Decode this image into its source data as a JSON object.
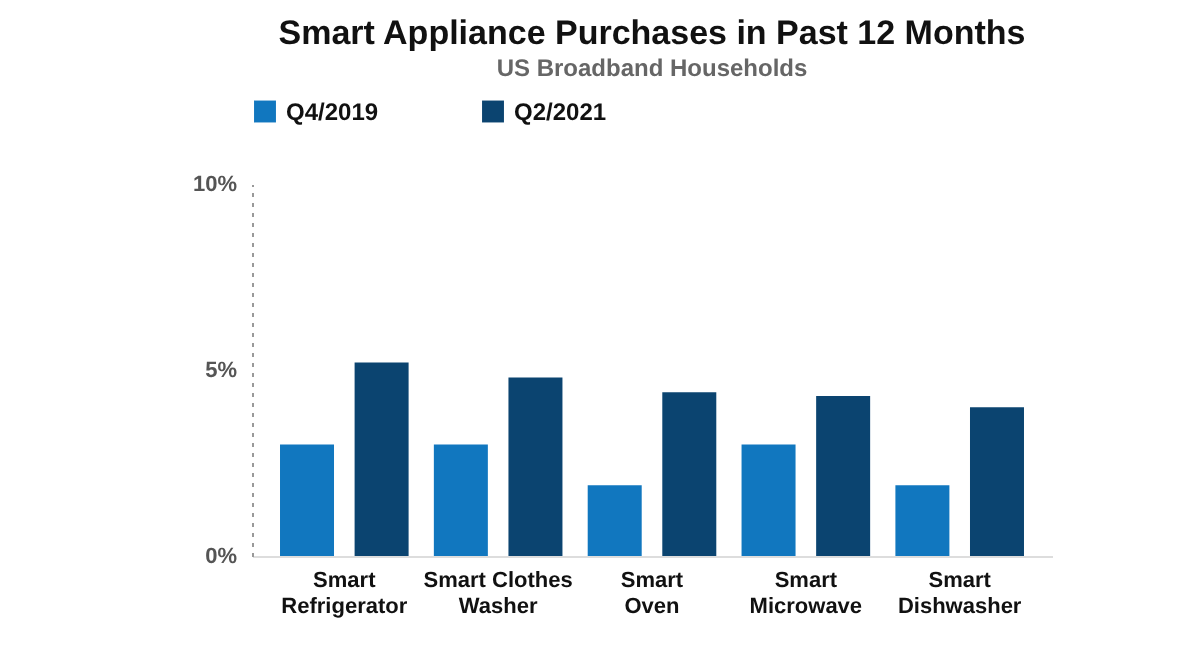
{
  "chart_data": {
    "type": "bar",
    "title": "Smart Appliance Purchases in Past 12 Months",
    "subtitle": "US Broadband Households",
    "categories": [
      "Smart Refrigerator",
      "Smart Clothes Washer",
      "Smart Oven",
      "Smart Microwave",
      "Smart Dishwasher"
    ],
    "series": [
      {
        "name": "Q4/2019",
        "color": "#1177bf",
        "values": [
          3.0,
          3.0,
          1.9,
          3.0,
          1.9
        ]
      },
      {
        "name": "Q2/2021",
        "color": "#0b4470",
        "values": [
          5.2,
          4.8,
          4.4,
          4.3,
          4.0
        ]
      }
    ],
    "ylim": [
      0,
      10
    ],
    "yticks": [
      {
        "value": 0,
        "label": "0%"
      },
      {
        "value": 5,
        "label": "5%"
      },
      {
        "value": 10,
        "label": "10%"
      }
    ],
    "grid": false,
    "legend": "top"
  }
}
